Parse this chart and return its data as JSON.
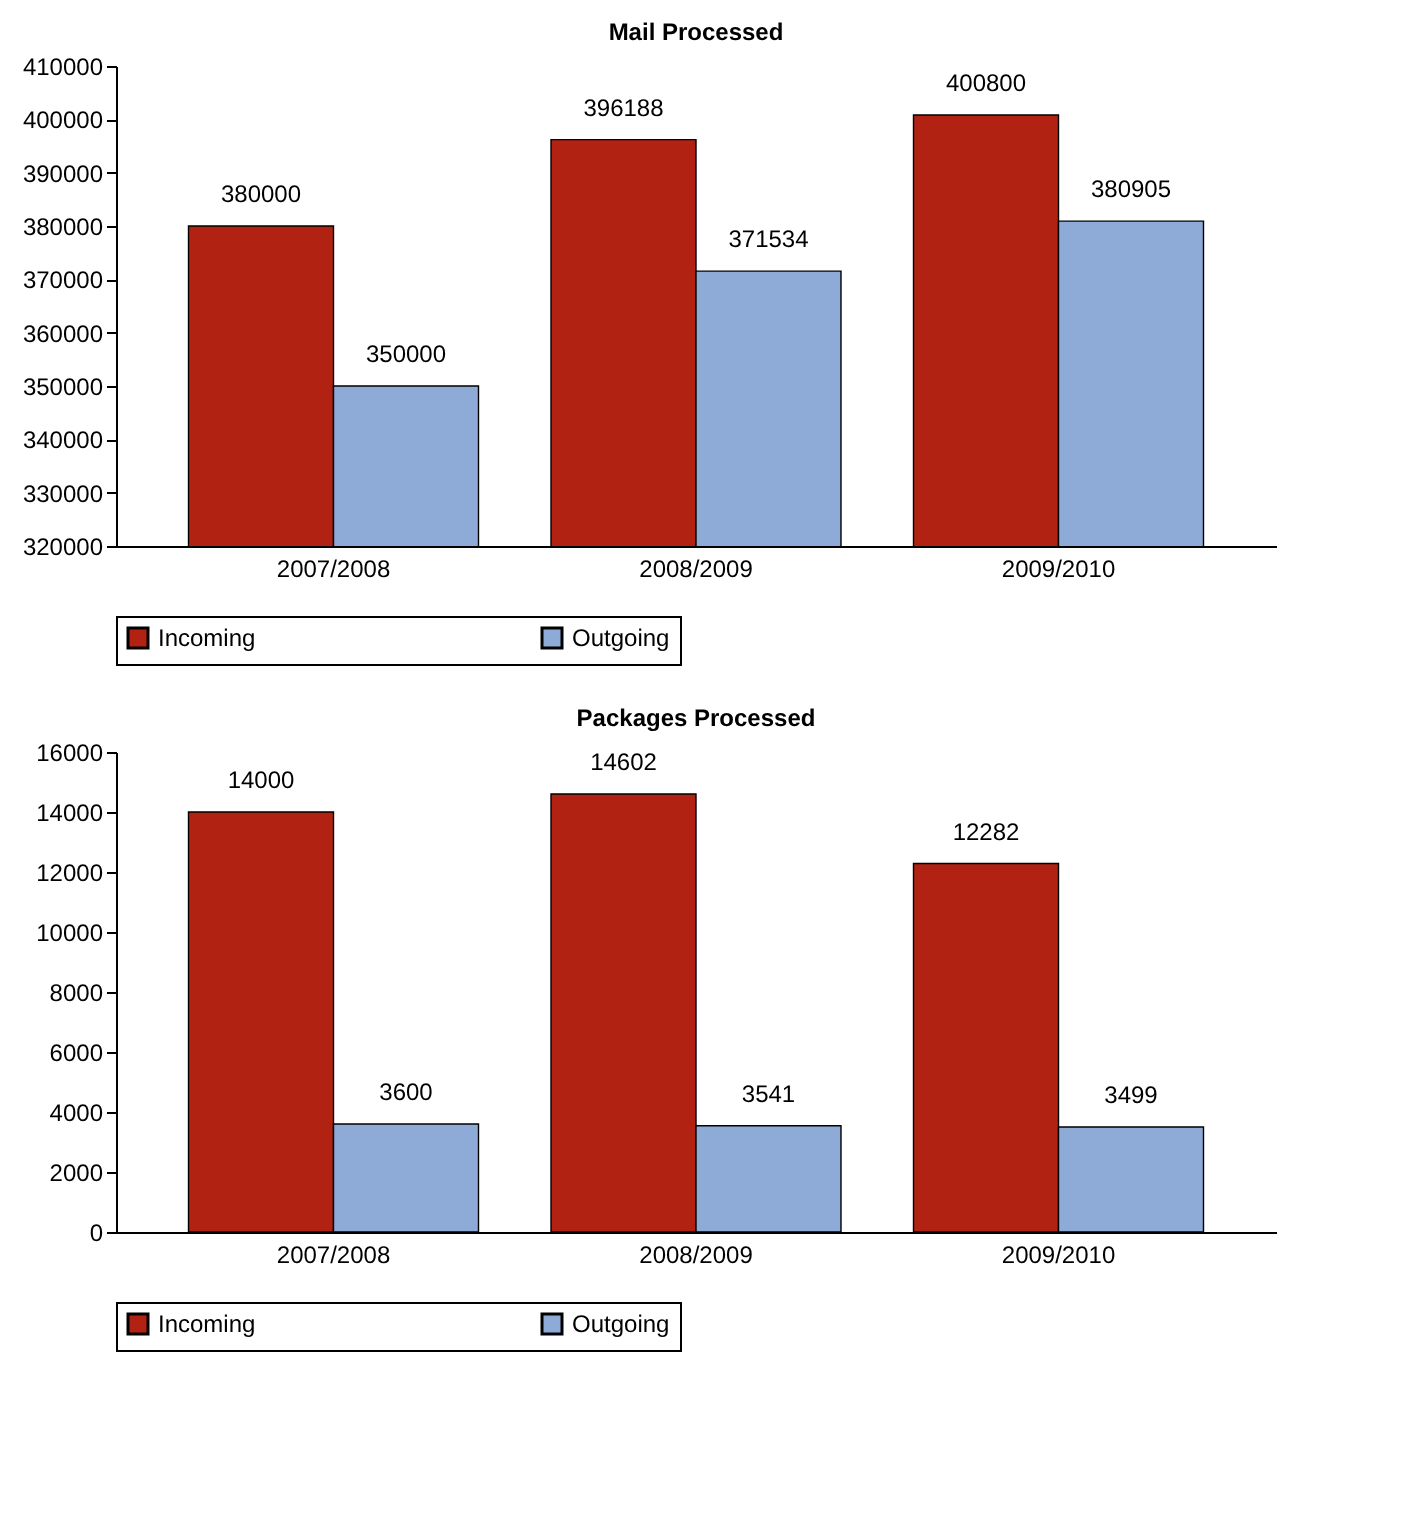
{
  "chart_data": [
    {
      "type": "bar",
      "title": "Mail Processed",
      "categories": [
        "2007/2008",
        "2008/2009",
        "2009/2010"
      ],
      "series": [
        {
          "name": "Incoming",
          "color": "#b22212",
          "values": [
            380000,
            396188,
            400800
          ]
        },
        {
          "name": "Outgoing",
          "color": "#8eaad6",
          "values": [
            350000,
            371534,
            380905
          ]
        }
      ],
      "ylim": [
        320000,
        410000
      ],
      "yticks": [
        320000,
        330000,
        340000,
        350000,
        360000,
        370000,
        380000,
        390000,
        400000,
        410000
      ],
      "grid": false,
      "legend": "bottom",
      "data_labels": true
    },
    {
      "type": "bar",
      "title": "Packages Processed",
      "categories": [
        "2007/2008",
        "2008/2009",
        "2009/2010"
      ],
      "series": [
        {
          "name": "Incoming",
          "color": "#b22212",
          "values": [
            14000,
            14602,
            12282
          ]
        },
        {
          "name": "Outgoing",
          "color": "#8eaad6",
          "values": [
            3600,
            3541,
            3499
          ]
        }
      ],
      "ylim": [
        0,
        16000
      ],
      "yticks": [
        0,
        2000,
        4000,
        6000,
        8000,
        10000,
        12000,
        14000,
        16000
      ],
      "grid": false,
      "legend": "bottom",
      "data_labels": true
    }
  ]
}
